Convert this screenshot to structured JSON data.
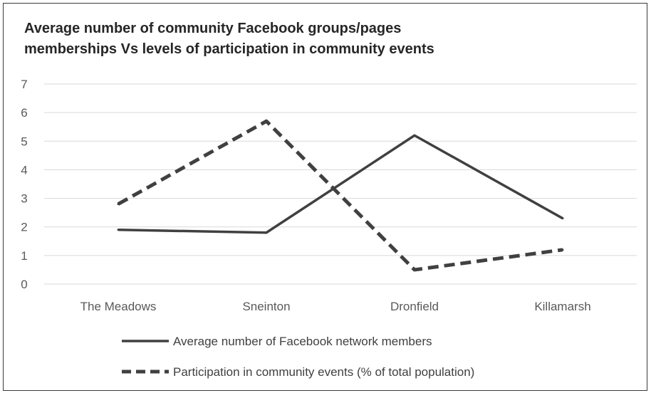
{
  "chart_data": {
    "type": "line",
    "title": "Average number of community Facebook groups/pages\nmemberships Vs levels of participation in community events",
    "categories": [
      "The Meadows",
      "Sneinton",
      "Dronfield",
      "Killamarsh"
    ],
    "series": [
      {
        "name": "Average number of Facebook network members",
        "values": [
          1.9,
          1.8,
          5.2,
          2.3
        ],
        "dash": "solid",
        "color": "#404040"
      },
      {
        "name": "Participation in community events (% of total population)",
        "values": [
          2.8,
          5.7,
          0.5,
          1.2
        ],
        "dash": "dashed",
        "color": "#404040"
      }
    ],
    "yticks": [
      0,
      1,
      2,
      3,
      4,
      5,
      6,
      7
    ],
    "ylim": [
      0,
      7
    ],
    "grid": true,
    "gridColor": "#d9d9d9",
    "legend": "bottom"
  }
}
